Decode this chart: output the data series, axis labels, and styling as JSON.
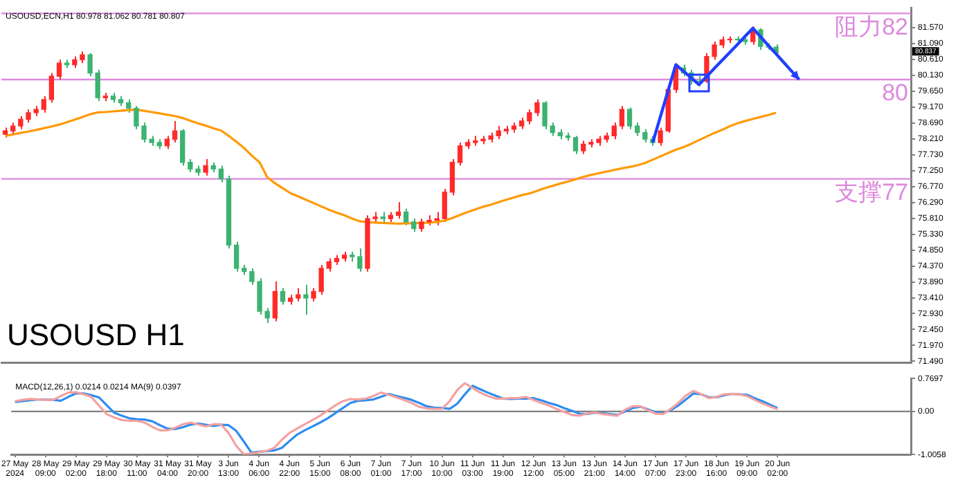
{
  "chart_data": [
    {
      "type": "candlestick",
      "tick_labels": "y",
      "annotations": [
        "USOUSD,ECN,H1 80.978 81.062 80.781 80.807",
        "USOUSD H1",
        "80.837"
      ],
      "categories": [
        null,
        null,
        null,
        null,
        null,
        null,
        null,
        null,
        null,
        null,
        null,
        null,
        null,
        null,
        null,
        null,
        null,
        null,
        null,
        null,
        null,
        null,
        null,
        null,
        null,
        null,
        null,
        null,
        null,
        null,
        null,
        null,
        null,
        null,
        null,
        null,
        null,
        null,
        null,
        null,
        null,
        null,
        null,
        null,
        null,
        null,
        null,
        null,
        null,
        null,
        null,
        null,
        null,
        null,
        null,
        null,
        null,
        null,
        null,
        null,
        null,
        null,
        null,
        null,
        null,
        null,
        null,
        null,
        null,
        null,
        null,
        null,
        null,
        null,
        null,
        null,
        null,
        null,
        null,
        null,
        null,
        null,
        null,
        null,
        null,
        null,
        null,
        null,
        null,
        null,
        null,
        null,
        null,
        null,
        null,
        null,
        null,
        null,
        null,
        null,
        null,
        null,
        null,
        null,
        null,
        null,
        null,
        null,
        null,
        null,
        null,
        null,
        null,
        null,
        null,
        null,
        null,
        null
      ],
      "series": [
        {
          "ohlc": [
            [
              78.35,
              78.55,
              78.25,
              78.45
            ],
            [
              78.45,
              78.7,
              78.35,
              78.6
            ],
            [
              78.6,
              78.9,
              78.5,
              78.8
            ],
            [
              78.8,
              79.1,
              78.7,
              79.0
            ],
            [
              79.0,
              79.2,
              78.9,
              79.1
            ],
            [
              79.1,
              79.5,
              79.0,
              79.4
            ],
            [
              79.4,
              80.2,
              79.3,
              80.1
            ],
            [
              80.1,
              80.6,
              80.0,
              80.5
            ],
            [
              80.5,
              80.6,
              80.35,
              80.45
            ],
            [
              80.45,
              80.7,
              80.35,
              80.6
            ],
            [
              80.6,
              80.85,
              80.5,
              80.75
            ],
            [
              80.75,
              80.8,
              80.1,
              80.2
            ],
            [
              80.2,
              80.3,
              79.35,
              79.45
            ],
            [
              79.45,
              79.6,
              79.35,
              79.5
            ],
            [
              79.5,
              79.6,
              79.3,
              79.4
            ],
            [
              79.4,
              79.5,
              79.2,
              79.3
            ],
            [
              79.3,
              79.4,
              79.0,
              79.13
            ],
            [
              79.13,
              79.2,
              78.5,
              78.6
            ],
            [
              78.6,
              78.7,
              78.1,
              78.2
            ],
            [
              78.2,
              78.3,
              78.0,
              78.1
            ],
            [
              78.1,
              78.2,
              77.9,
              78.0
            ],
            [
              78.0,
              78.3,
              77.9,
              78.2
            ],
            [
              78.2,
              78.75,
              78.1,
              78.45
            ],
            [
              78.45,
              78.5,
              77.4,
              77.5
            ],
            [
              77.5,
              77.6,
              77.2,
              77.3
            ],
            [
              77.3,
              77.4,
              77.1,
              77.2
            ],
            [
              77.2,
              77.6,
              77.1,
              77.4
            ],
            [
              77.4,
              77.5,
              77.2,
              77.3
            ],
            [
              77.3,
              77.4,
              76.9,
              77.0
            ],
            [
              77.0,
              77.1,
              74.9,
              75.0
            ],
            [
              75.0,
              75.1,
              74.2,
              74.3
            ],
            [
              74.3,
              74.4,
              74.1,
              74.2
            ],
            [
              74.2,
              74.3,
              73.8,
              73.9
            ],
            [
              73.9,
              74.0,
              72.9,
              73.0
            ],
            [
              73.0,
              73.1,
              72.65,
              72.8
            ],
            [
              72.8,
              73.9,
              72.7,
              73.6
            ],
            [
              73.6,
              73.7,
              73.2,
              73.3
            ],
            [
              73.3,
              73.5,
              73.2,
              73.4
            ],
            [
              73.4,
              73.7,
              73.3,
              73.5
            ],
            [
              73.5,
              73.8,
              72.9,
              73.4
            ],
            [
              73.4,
              73.7,
              73.3,
              73.6
            ],
            [
              73.6,
              74.4,
              73.5,
              74.3
            ],
            [
              74.3,
              74.6,
              74.2,
              74.5
            ],
            [
              74.5,
              74.7,
              74.4,
              74.6
            ],
            [
              74.6,
              74.8,
              74.5,
              74.7
            ],
            [
              74.7,
              74.8,
              74.5,
              74.65
            ],
            [
              74.65,
              74.9,
              74.2,
              74.3
            ],
            [
              74.3,
              75.9,
              74.2,
              75.8
            ],
            [
              75.8,
              76.0,
              75.7,
              75.85
            ],
            [
              75.85,
              76.0,
              75.7,
              75.8
            ],
            [
              75.8,
              76.0,
              75.7,
              75.9
            ],
            [
              75.9,
              76.3,
              75.8,
              76.0
            ],
            [
              76.0,
              76.1,
              75.6,
              75.7
            ],
            [
              75.7,
              75.8,
              75.4,
              75.5
            ],
            [
              75.5,
              75.8,
              75.4,
              75.7
            ],
            [
              75.7,
              75.9,
              75.6,
              75.75
            ],
            [
              75.75,
              76.0,
              75.6,
              75.8
            ],
            [
              75.8,
              76.7,
              75.7,
              76.6
            ],
            [
              76.6,
              77.6,
              76.5,
              77.5
            ],
            [
              77.5,
              78.1,
              77.4,
              78.0
            ],
            [
              78.0,
              78.2,
              77.9,
              78.1
            ],
            [
              78.1,
              78.3,
              78.0,
              78.15
            ],
            [
              78.15,
              78.3,
              78.05,
              78.2
            ],
            [
              78.2,
              78.4,
              78.1,
              78.3
            ],
            [
              78.3,
              78.6,
              78.2,
              78.45
            ],
            [
              78.45,
              78.6,
              78.35,
              78.5
            ],
            [
              78.5,
              78.7,
              78.4,
              78.6
            ],
            [
              78.6,
              78.85,
              78.5,
              78.75
            ],
            [
              78.75,
              79.1,
              78.65,
              79.0
            ],
            [
              79.0,
              79.4,
              78.9,
              79.3
            ],
            [
              79.3,
              79.35,
              78.5,
              78.6
            ],
            [
              78.6,
              78.7,
              78.3,
              78.4
            ],
            [
              78.4,
              78.5,
              78.2,
              78.3
            ],
            [
              78.3,
              78.4,
              78.15,
              78.25
            ],
            [
              78.25,
              78.3,
              77.75,
              77.85
            ],
            [
              77.85,
              78.15,
              77.75,
              78.05
            ],
            [
              78.05,
              78.2,
              77.95,
              78.1
            ],
            [
              78.1,
              78.3,
              78.0,
              78.2
            ],
            [
              78.2,
              78.4,
              78.1,
              78.3
            ],
            [
              78.3,
              78.7,
              78.2,
              78.6
            ],
            [
              78.6,
              79.2,
              78.5,
              79.1
            ],
            [
              79.1,
              79.15,
              78.5,
              78.6
            ],
            [
              78.6,
              78.7,
              78.3,
              78.4
            ],
            [
              78.4,
              78.5,
              78.1,
              78.2
            ],
            [
              78.2,
              78.3,
              78.0,
              78.1
            ],
            [
              78.1,
              78.55,
              78.0,
              78.45
            ],
            [
              78.45,
              79.8,
              78.4,
              79.7
            ],
            [
              79.7,
              80.45,
              79.6,
              80.35
            ],
            [
              80.35,
              80.45,
              80.1,
              80.2
            ],
            [
              80.2,
              80.3,
              79.85,
              79.95
            ],
            [
              79.95,
              80.1,
              79.8,
              79.95
            ],
            [
              79.95,
              80.8,
              79.9,
              80.7
            ],
            [
              80.7,
              81.15,
              80.6,
              81.05
            ],
            [
              81.05,
              81.3,
              80.95,
              81.2
            ],
            [
              81.2,
              81.3,
              81.1,
              81.22
            ],
            [
              81.22,
              81.3,
              81.1,
              81.2
            ],
            [
              81.2,
              81.3,
              81.05,
              81.15
            ],
            [
              81.15,
              81.6,
              81.05,
              81.5
            ],
            [
              81.5,
              81.55,
              80.9,
              81.0
            ],
            [
              81.0,
              81.1,
              80.9,
              80.98
            ],
            [
              80.98,
              81.06,
              80.78,
              80.81
            ],
            null,
            null,
            null,
            null,
            null,
            null,
            null,
            null,
            null,
            null,
            null,
            null,
            null,
            null,
            null,
            null,
            null
          ],
          "colors": [
            "#ff2a2a",
            "#ff2a2a",
            "#ff2a2a",
            "#ff2a2a",
            "#ff2a2a",
            "#ff2a2a",
            "#ff2a2a",
            "#ff2a2a",
            "#3cb371",
            "#ff2a2a",
            "#ff2a2a",
            "#3cb371",
            "#3cb371",
            "#ff2a2a",
            "#3cb371",
            "#3cb371",
            "#3cb371",
            "#3cb371",
            "#3cb371",
            "#3cb371",
            "#3cb371",
            "#ff2a2a",
            "#ff2a2a",
            "#3cb371",
            "#3cb371",
            "#3cb371",
            "#ff2a2a",
            "#3cb371",
            "#3cb371",
            "#3cb371",
            "#3cb371",
            "#3cb371",
            "#3cb371",
            "#3cb371",
            "#3cb371",
            "#ff2a2a",
            "#3cb371",
            "#ff2a2a",
            "#ff2a2a",
            "#3cb371",
            "#ff2a2a",
            "#ff2a2a",
            "#ff2a2a",
            "#ff2a2a",
            "#ff2a2a",
            "#3cb371",
            "#3cb371",
            "#ff2a2a",
            "#ff2a2a",
            "#3cb371",
            "#ff2a2a",
            "#ff2a2a",
            "#3cb371",
            "#3cb371",
            "#ff2a2a",
            "#ff2a2a",
            "#ff2a2a",
            "#ff2a2a",
            "#ff2a2a",
            "#ff2a2a",
            "#ff2a2a",
            "#ff2a2a",
            "#ff2a2a",
            "#ff2a2a",
            "#ff2a2a",
            "#ff2a2a",
            "#ff2a2a",
            "#ff2a2a",
            "#ff2a2a",
            "#ff2a2a",
            "#3cb371",
            "#3cb371",
            "#3cb371",
            "#3cb371",
            "#3cb371",
            "#ff2a2a",
            "#ff2a2a",
            "#ff2a2a",
            "#ff2a2a",
            "#ff2a2a",
            "#ff2a2a",
            "#3cb371",
            "#3cb371",
            "#3cb371",
            "#3cb371",
            "#ff2a2a",
            "#ff2a2a",
            "#ff2a2a",
            "#3cb371",
            "#3cb371",
            "#3cb371",
            "#ff2a2a",
            "#ff2a2a",
            "#ff2a2a",
            "#ff2a2a",
            "#3cb371",
            "#3cb371",
            "#ff2a2a",
            "#3cb371",
            "#3cb371",
            "#3cb371",
            null,
            null,
            null,
            null,
            null,
            null,
            null,
            null,
            null,
            null,
            null,
            null,
            null,
            null,
            null,
            null,
            null
          ]
        },
        {
          "type": "line",
          "color": "#ff9900",
          "values": [
            78.3,
            78.34,
            78.39,
            78.43,
            78.48,
            78.53,
            78.58,
            78.64,
            78.71,
            78.79,
            78.87,
            78.95,
            79.01,
            79.02,
            79.04,
            79.06,
            79.08,
            79.09,
            79.06,
            79.02,
            78.98,
            78.94,
            78.9,
            78.84,
            78.76,
            78.68,
            78.61,
            78.53,
            78.46,
            78.3,
            78.12,
            77.93,
            77.7,
            77.5,
            77.05,
            76.87,
            76.72,
            76.57,
            76.47,
            76.37,
            76.27,
            76.17,
            76.07,
            75.98,
            75.9,
            75.8,
            75.72,
            75.69,
            75.68,
            75.67,
            75.66,
            75.65,
            75.66,
            75.66,
            75.67,
            75.68,
            75.7,
            75.74,
            75.82,
            75.91,
            76.0,
            76.08,
            76.16,
            76.22,
            76.3,
            76.37,
            76.44,
            76.51,
            76.56,
            76.64,
            76.72,
            76.79,
            76.86,
            76.92,
            76.99,
            77.06,
            77.12,
            77.17,
            77.22,
            77.27,
            77.32,
            77.36,
            77.41,
            77.48,
            77.58,
            77.68,
            77.78,
            77.88,
            77.96,
            78.06,
            78.17,
            78.28,
            78.39,
            78.48,
            78.59,
            78.68,
            78.75,
            78.81,
            78.87,
            78.93,
            79.0,
            null,
            null,
            null,
            null,
            null,
            null,
            null,
            null,
            null,
            null,
            null,
            null,
            null,
            null,
            null,
            null,
            null
          ]
        },
        {
          "type": "line",
          "color": "#1f3fff",
          "values": [
            null,
            null,
            null,
            null,
            null,
            null,
            null,
            null,
            null,
            null,
            null,
            null,
            null,
            null,
            null,
            null,
            null,
            null,
            null,
            null,
            null,
            null,
            null,
            null,
            null,
            null,
            null,
            null,
            null,
            null,
            null,
            null,
            null,
            null,
            null,
            null,
            null,
            null,
            null,
            null,
            null,
            null,
            null,
            null,
            null,
            null,
            null,
            null,
            null,
            null,
            null,
            null,
            null,
            null,
            null,
            null,
            null,
            null,
            null,
            null,
            null,
            null,
            null,
            null,
            null,
            null,
            null,
            null,
            null,
            null,
            null,
            null,
            null,
            null,
            null,
            null,
            null,
            null,
            null,
            null,
            null,
            null,
            null,
            null,
            78.1,
            78.88,
            79.67,
            80.45,
            80.25,
            80.05,
            79.85,
            80.09,
            80.34,
            80.58,
            80.82,
            81.06,
            81.31,
            81.55,
            81.29,
            81.03,
            80.78,
            80.52,
            80.26,
            80.0,
            null,
            null,
            null,
            null,
            null,
            null,
            null,
            null,
            null,
            null,
            null,
            null,
            null,
            null
          ]
        }
      ],
      "ylim": [
        71.44,
        82.17
      ],
      "yticks": [
        {
          "value": 71.49,
          "label": "71.490"
        },
        {
          "value": 71.97,
          "label": "71.970"
        },
        {
          "value": 72.45,
          "label": "72.450"
        },
        {
          "value": 72.93,
          "label": "72.930"
        },
        {
          "value": 73.41,
          "label": "73.410"
        },
        {
          "value": 73.89,
          "label": "73.890"
        },
        {
          "value": 74.37,
          "label": "74.370"
        },
        {
          "value": 74.85,
          "label": "74.850"
        },
        {
          "value": 75.33,
          "label": "75.330"
        },
        {
          "value": 75.81,
          "label": "75.810"
        },
        {
          "value": 76.29,
          "label": "76.290"
        },
        {
          "value": 76.77,
          "label": "76.770"
        },
        {
          "value": 77.25,
          "label": "77.250"
        },
        {
          "value": 77.73,
          "label": "77.730"
        },
        {
          "value": 78.21,
          "label": "78.210"
        },
        {
          "value": 78.69,
          "label": "78.690"
        },
        {
          "value": 79.17,
          "label": "79.170"
        },
        {
          "value": 79.65,
          "label": "79.650"
        },
        {
          "value": 80.13,
          "label": "80.130"
        },
        {
          "value": 80.61,
          "label": "80.610"
        },
        {
          "value": 81.09,
          "label": "81.090"
        },
        {
          "value": 81.57,
          "label": "81.570"
        }
      ],
      "ref_lines": [
        {
          "axis": "y",
          "value": 82,
          "label": "阻力82",
          "color": "#dd88dd"
        },
        {
          "axis": "y",
          "value": 80,
          "label": "80",
          "color": "#dd88dd"
        },
        {
          "axis": "y",
          "value": 77,
          "label": "支撑77",
          "color": "#dd88dd"
        }
      ],
      "legend": false,
      "grid": false
    },
    {
      "type": "line",
      "annotations": [
        "MACD(12,26,1) 0.0214 0.0214 MA(9) 0.0397"
      ],
      "categories": [
        "27 May 2024",
        null,
        null,
        null,
        "28 May 09:00",
        null,
        null,
        null,
        "29 May 02:00",
        null,
        null,
        null,
        "29 May 18:00",
        null,
        null,
        null,
        "30 May 11:00",
        null,
        null,
        null,
        "31 May 04:00",
        null,
        null,
        null,
        "31 May 20:00",
        null,
        null,
        null,
        "3 Jun 13:00",
        null,
        null,
        null,
        "4 Jun 06:00",
        null,
        null,
        null,
        "4 Jun 22:00",
        null,
        null,
        null,
        "5 Jun 15:00",
        null,
        null,
        null,
        "6 Jun 08:00",
        null,
        null,
        null,
        "7 Jun 01:00",
        null,
        null,
        null,
        "7 Jun 17:00",
        null,
        null,
        null,
        "10 Jun 10:00",
        null,
        null,
        null,
        "11 Jun 03:00",
        null,
        null,
        null,
        "11 Jun 19:00",
        null,
        null,
        null,
        "12 Jun 12:00",
        null,
        null,
        null,
        "13 Jun 05:00",
        null,
        null,
        null,
        "13 Jun 21:00",
        null,
        null,
        null,
        "14 Jun 14:00",
        null,
        null,
        null,
        "17 Jun 07:00",
        null,
        null,
        null,
        "17 Jun 23:00",
        null,
        null,
        null,
        "18 Jun 16:00",
        null,
        null,
        null,
        "19 Jun 09:00",
        null,
        null,
        null,
        "20 Jun 02:00",
        null,
        null,
        null,
        null,
        null,
        null,
        null,
        null,
        null,
        null,
        null,
        null,
        null,
        null,
        null,
        null,
        null
      ],
      "series": [
        {
          "color": "#f4a0a0",
          "values": [
            0.24,
            0.27,
            0.29,
            0.28,
            0.27,
            0.27,
            0.36,
            0.44,
            0.45,
            0.4,
            0.34,
            0.14,
            -0.06,
            -0.14,
            -0.2,
            -0.22,
            -0.22,
            -0.26,
            -0.36,
            -0.44,
            -0.44,
            -0.38,
            -0.3,
            -0.26,
            -0.3,
            -0.35,
            -0.3,
            -0.3,
            -0.5,
            -0.8,
            -1.0,
            -0.98,
            -0.95,
            -0.92,
            -0.85,
            -0.66,
            -0.5,
            -0.4,
            -0.3,
            -0.2,
            -0.1,
            0.02,
            0.14,
            0.24,
            0.29,
            0.28,
            0.3,
            0.36,
            0.44,
            0.39,
            0.33,
            0.27,
            0.2,
            0.11,
            0.07,
            0.06,
            0.06,
            0.24,
            0.5,
            0.66,
            0.55,
            0.44,
            0.36,
            0.3,
            0.3,
            0.31,
            0.31,
            0.34,
            0.27,
            0.2,
            0.14,
            0.06,
            -0.01,
            -0.08,
            -0.1,
            -0.05,
            -0.02,
            -0.06,
            -0.08,
            -0.1,
            0.04,
            0.12,
            0.12,
            0.03,
            -0.05,
            -0.06,
            0.06,
            0.2,
            0.37,
            0.48,
            0.4,
            0.31,
            0.34,
            0.4,
            0.41,
            0.4,
            0.36,
            0.27,
            0.19,
            0.12,
            0.05,
            null,
            null,
            null,
            null,
            null,
            null,
            null,
            null,
            null,
            null,
            null,
            null,
            null,
            null,
            null,
            null,
            null
          ]
        },
        {
          "color": "#2d8cf0",
          "values": [
            0.22,
            0.24,
            0.26,
            0.28,
            0.28,
            0.27,
            0.25,
            0.34,
            0.42,
            0.42,
            0.38,
            0.33,
            0.15,
            -0.03,
            -0.1,
            -0.16,
            -0.18,
            -0.19,
            -0.23,
            -0.32,
            -0.4,
            -0.41,
            -0.37,
            -0.31,
            -0.28,
            -0.31,
            -0.34,
            -0.31,
            -0.32,
            -0.45,
            -0.7,
            -0.96,
            -0.94,
            -0.93,
            -0.91,
            -0.85,
            -0.69,
            -0.54,
            -0.44,
            -0.35,
            -0.26,
            -0.16,
            -0.04,
            0.08,
            0.2,
            0.25,
            0.26,
            0.28,
            0.34,
            0.41,
            0.36,
            0.32,
            0.27,
            0.2,
            0.12,
            0.09,
            0.08,
            0.06,
            0.18,
            0.4,
            0.6,
            0.52,
            0.44,
            0.37,
            0.3,
            0.29,
            0.3,
            0.3,
            0.31,
            0.26,
            0.2,
            0.15,
            0.08,
            0.02,
            -0.05,
            -0.06,
            -0.03,
            -0.04,
            -0.06,
            -0.08,
            0.0,
            0.08,
            0.11,
            0.05,
            -0.02,
            -0.04,
            0.03,
            0.14,
            0.28,
            0.42,
            0.4,
            0.33,
            0.33,
            0.38,
            0.41,
            0.4,
            0.39,
            0.31,
            0.24,
            0.16,
            0.08,
            null,
            null,
            null,
            null,
            null,
            null,
            null,
            null,
            null,
            null,
            null,
            null,
            null,
            null,
            null,
            null,
            null
          ]
        }
      ],
      "ylim": [
        -1.0058,
        0.7697
      ],
      "yticks": [
        0.7697,
        {
          "value": 0,
          "label": "0.00"
        },
        -1.0058
      ],
      "ref_lines": [
        {
          "axis": "y",
          "value": 0,
          "color": "#808080"
        }
      ],
      "legend": false,
      "grid": false
    }
  ]
}
